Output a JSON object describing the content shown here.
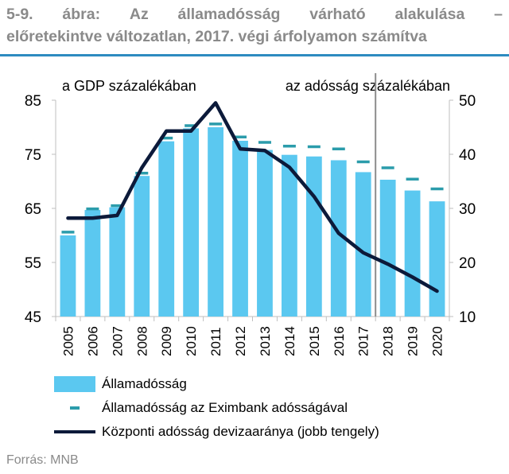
{
  "title": {
    "words": [
      "5-9.",
      "ábra:",
      "Az",
      "államadósság",
      "várható",
      "alakulása",
      "–"
    ],
    "line2": "előretekintve változatlan, 2017. végi árfolyamon számítva"
  },
  "source": "Forrás: MNB",
  "colors": {
    "bar": "#5bc8f0",
    "dash": "#2b9cab",
    "line": "#0c1a3a",
    "accent": "#2e8bc0"
  },
  "chart_data": {
    "type": "bar",
    "categories": [
      "2005",
      "2006",
      "2007",
      "2008",
      "2009",
      "2010",
      "2011",
      "2012",
      "2013",
      "2014",
      "2015",
      "2016",
      "2017",
      "2018",
      "2019",
      "2020"
    ],
    "left_axis": {
      "label": "a GDP százalékában",
      "ticks": [
        45,
        55,
        65,
        75,
        85
      ],
      "ylim": [
        45,
        85
      ]
    },
    "right_axis": {
      "label": "az adósság százalékában",
      "ticks": [
        10,
        20,
        30,
        40,
        50
      ],
      "ylim": [
        10,
        50
      ]
    },
    "forecast_divider_after": "2017",
    "series": [
      {
        "name": "Államadósság",
        "type": "bar",
        "axis": "left",
        "values": [
          60.0,
          64.7,
          65.2,
          71.0,
          77.4,
          79.8,
          80.0,
          77.5,
          75.8,
          74.9,
          74.6,
          73.9,
          71.7,
          70.3,
          68.3,
          66.3
        ]
      },
      {
        "name": "Államadósság az Eximbank adósságával",
        "type": "dash",
        "axis": "left",
        "values": [
          60.6,
          64.9,
          65.5,
          71.5,
          78.0,
          80.3,
          80.6,
          78.2,
          77.2,
          76.5,
          76.4,
          76.0,
          73.6,
          72.5,
          70.4,
          68.6
        ]
      },
      {
        "name": "Központi adósság devizaaránya (jobb tengely)",
        "type": "line",
        "axis": "right",
        "values": [
          28.2,
          28.2,
          28.7,
          37.5,
          44.3,
          44.3,
          49.5,
          41.0,
          40.7,
          37.6,
          32.2,
          25.4,
          21.8,
          19.7,
          17.3,
          14.7
        ]
      }
    ]
  }
}
